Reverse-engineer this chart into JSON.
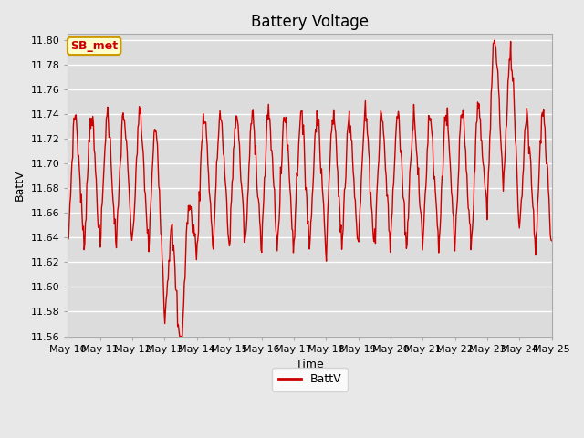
{
  "title": "Battery Voltage",
  "xlabel": "Time",
  "ylabel": "BattV",
  "legend_label": "BattV",
  "line_color": "#cc0000",
  "line_width": 1.0,
  "background_color": "#e8e8e8",
  "plot_bg_color": "#dcdcdc",
  "ylim": [
    11.56,
    11.805
  ],
  "yticks": [
    11.56,
    11.58,
    11.6,
    11.62,
    11.64,
    11.66,
    11.68,
    11.7,
    11.72,
    11.74,
    11.76,
    11.78,
    11.8
  ],
  "xtick_labels": [
    "May 10",
    "May 11",
    "May 12",
    "May 13",
    "May 14",
    "May 15",
    "May 16",
    "May 17",
    "May 18",
    "May 19",
    "May 20",
    "May 21",
    "May 22",
    "May 23",
    "May 24",
    "May 25"
  ],
  "annotation_text": "SB_met",
  "annotation_bg": "#ffffcc",
  "annotation_border": "#cc9900",
  "title_fontsize": 12,
  "label_fontsize": 9,
  "tick_fontsize": 8
}
